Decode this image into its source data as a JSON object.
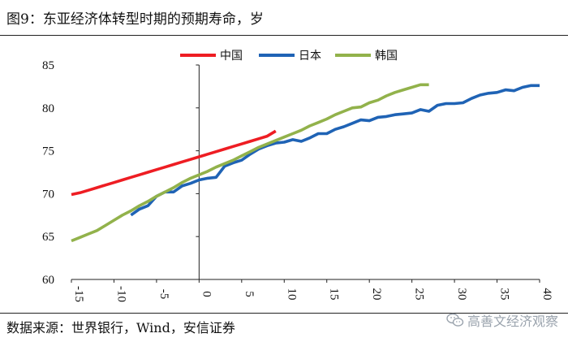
{
  "title": "图9：东亚经济体转型时期的预期寿命，岁",
  "source": "数据来源：世界银行，Wind，安信证券",
  "watermark": "高善文经济观察",
  "chart_data": {
    "type": "line",
    "title": "图9：东亚经济体转型时期的预期寿命，岁",
    "xlabel": "",
    "ylabel": "",
    "xlim": [
      -15,
      40
    ],
    "ylim": [
      60,
      85
    ],
    "xticks": [
      -15,
      -10,
      -5,
      0,
      5,
      10,
      15,
      20,
      25,
      30,
      35,
      40
    ],
    "yticks": [
      60,
      65,
      70,
      75,
      80,
      85
    ],
    "grid": false,
    "legend_position": "top-center",
    "series": [
      {
        "name": "中国",
        "color": "#ee1d23",
        "x": [
          -15,
          -14,
          -13,
          -12,
          -11,
          -10,
          -9,
          -8,
          -7,
          -6,
          -5,
          -4,
          -3,
          -2,
          -1,
          0,
          1,
          2,
          3,
          4,
          5,
          6,
          7,
          8,
          9
        ],
        "y": [
          69.9,
          70.1,
          70.4,
          70.7,
          71.0,
          71.3,
          71.6,
          71.9,
          72.2,
          72.5,
          72.8,
          73.1,
          73.4,
          73.7,
          74.0,
          74.3,
          74.6,
          74.9,
          75.2,
          75.5,
          75.8,
          76.1,
          76.4,
          76.7,
          77.3
        ]
      },
      {
        "name": "日本",
        "color": "#1f63b5",
        "x": [
          -8,
          -7,
          -6,
          -5,
          -4,
          -3,
          -2,
          -1,
          0,
          1,
          2,
          3,
          4,
          5,
          6,
          7,
          8,
          9,
          10,
          11,
          12,
          13,
          14,
          15,
          16,
          17,
          18,
          19,
          20,
          21,
          22,
          23,
          24,
          25,
          26,
          27,
          28,
          29,
          30,
          31,
          32,
          33,
          34,
          35,
          36,
          37,
          38,
          39,
          40
        ],
        "y": [
          67.5,
          68.2,
          68.6,
          69.7,
          70.2,
          70.2,
          70.9,
          71.2,
          71.6,
          71.8,
          71.9,
          73.2,
          73.6,
          73.9,
          74.6,
          75.2,
          75.6,
          75.9,
          76.0,
          76.3,
          76.1,
          76.5,
          77.0,
          77.0,
          77.5,
          77.8,
          78.2,
          78.6,
          78.5,
          78.9,
          79.0,
          79.2,
          79.3,
          79.4,
          79.8,
          79.6,
          80.3,
          80.5,
          80.5,
          80.6,
          81.1,
          81.5,
          81.7,
          81.8,
          82.1,
          82.0,
          82.4,
          82.6,
          82.6
        ]
      },
      {
        "name": "韩国",
        "color": "#92b24b",
        "x": [
          -15,
          -14,
          -13,
          -12,
          -11,
          -10,
          -9,
          -8,
          -7,
          -6,
          -5,
          -4,
          -3,
          -2,
          -1,
          0,
          1,
          2,
          3,
          4,
          5,
          6,
          7,
          8,
          9,
          10,
          11,
          12,
          13,
          14,
          15,
          16,
          17,
          18,
          19,
          20,
          21,
          22,
          23,
          24,
          25,
          26,
          27
        ],
        "y": [
          64.5,
          64.9,
          65.3,
          65.7,
          66.3,
          66.9,
          67.5,
          68.0,
          68.6,
          69.1,
          69.7,
          70.2,
          70.7,
          71.3,
          71.8,
          72.2,
          72.6,
          73.1,
          73.5,
          73.9,
          74.4,
          74.9,
          75.4,
          75.8,
          76.2,
          76.6,
          77.0,
          77.4,
          77.9,
          78.3,
          78.7,
          79.2,
          79.6,
          80.0,
          80.1,
          80.6,
          80.9,
          81.4,
          81.8,
          82.1,
          82.4,
          82.7,
          82.7
        ]
      }
    ]
  }
}
